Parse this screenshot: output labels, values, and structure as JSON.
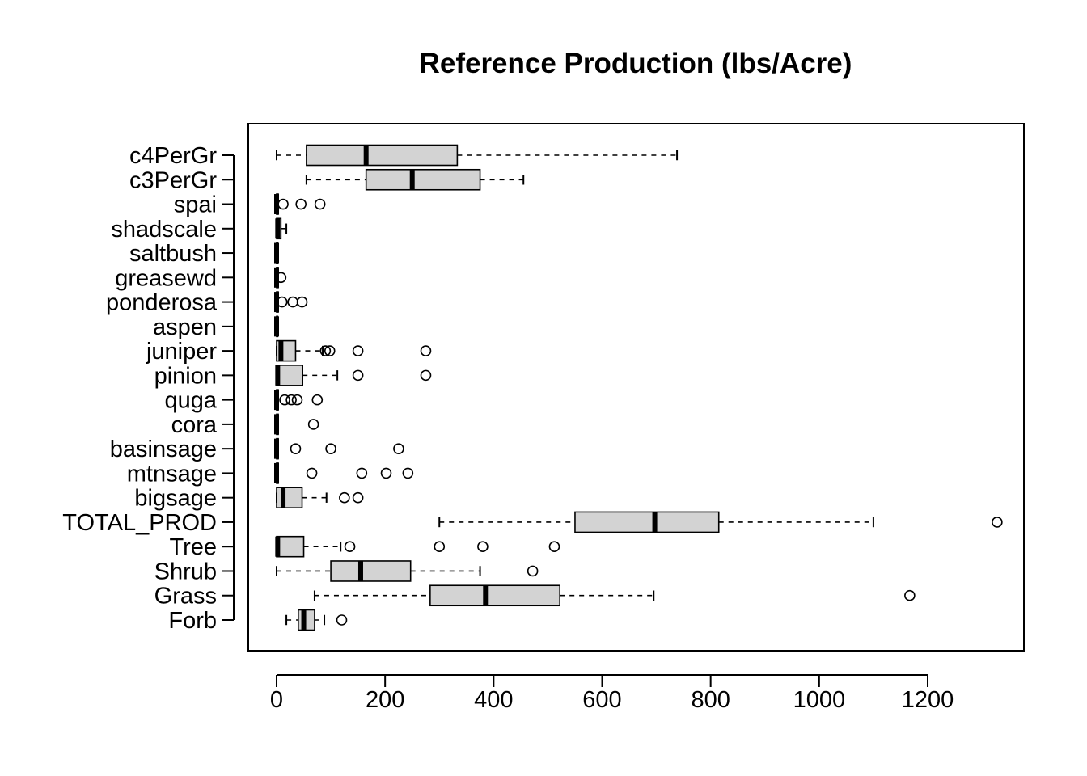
{
  "chart_data": {
    "type": "boxplot",
    "orientation": "horizontal",
    "title": "Reference Production (lbs/Acre)",
    "xlabel": "",
    "ylabel": "",
    "xlim": [
      0,
      1350
    ],
    "x_ticks": [
      0,
      200,
      400,
      600,
      800,
      1000,
      1200
    ],
    "grid": false,
    "legend": "none",
    "colors": {
      "box_fill": "#d3d3d3",
      "stroke": "#000000"
    },
    "categories": [
      "Forb",
      "Grass",
      "Shrub",
      "Tree",
      "TOTAL_PROD",
      "bigsage",
      "mtnsage",
      "basinsage",
      "cora",
      "quga",
      "pinion",
      "juniper",
      "aspen",
      "ponderosa",
      "greasewd",
      "saltbush",
      "shadscale",
      "spai",
      "c3PerGr",
      "c4PerGr"
    ],
    "boxes": [
      {
        "name": "Forb",
        "whisker_low": 18,
        "q1": 40,
        "median": 50,
        "q3": 70,
        "whisker_high": 88,
        "outliers": [
          120
        ]
      },
      {
        "name": "Grass",
        "whisker_low": 70,
        "q1": 283,
        "median": 385,
        "q3": 522,
        "whisker_high": 695,
        "outliers": [
          1167
        ]
      },
      {
        "name": "Shrub",
        "whisker_low": 0,
        "q1": 100,
        "median": 155,
        "q3": 247,
        "whisker_high": 375,
        "outliers": [
          472
        ]
      },
      {
        "name": "Tree",
        "whisker_low": 0,
        "q1": 0,
        "median": 2,
        "q3": 50,
        "whisker_high": 118,
        "outliers": [
          135,
          300,
          380,
          512
        ]
      },
      {
        "name": "TOTAL_PROD",
        "whisker_low": 300,
        "q1": 550,
        "median": 697,
        "q3": 815,
        "whisker_high": 1100,
        "outliers": [
          1328
        ]
      },
      {
        "name": "bigsage",
        "whisker_low": 0,
        "q1": 0,
        "median": 12,
        "q3": 47,
        "whisker_high": 92,
        "outliers": [
          125,
          150
        ]
      },
      {
        "name": "mtnsage",
        "whisker_low": 0,
        "q1": 0,
        "median": 0,
        "q3": 3,
        "whisker_high": 3,
        "outliers": [
          65,
          157,
          202,
          242
        ]
      },
      {
        "name": "basinsage",
        "whisker_low": 0,
        "q1": 0,
        "median": 0,
        "q3": 3,
        "whisker_high": 3,
        "outliers": [
          35,
          100,
          225
        ]
      },
      {
        "name": "cora",
        "whisker_low": 0,
        "q1": 0,
        "median": 0,
        "q3": 3,
        "whisker_high": 3,
        "outliers": [
          68
        ]
      },
      {
        "name": "quga",
        "whisker_low": 0,
        "q1": 0,
        "median": 0,
        "q3": 3,
        "whisker_high": 3,
        "outliers": [
          15,
          27,
          38,
          75
        ]
      },
      {
        "name": "pinion",
        "whisker_low": 0,
        "q1": 0,
        "median": 2,
        "q3": 48,
        "whisker_high": 112,
        "outliers": [
          150,
          275
        ]
      },
      {
        "name": "juniper",
        "whisker_low": 0,
        "q1": 0,
        "median": 8,
        "q3": 35,
        "whisker_high": 85,
        "outliers": [
          90,
          98,
          150,
          275
        ]
      },
      {
        "name": "aspen",
        "whisker_low": 0,
        "q1": 0,
        "median": 0,
        "q3": 2,
        "whisker_high": 2,
        "outliers": []
      },
      {
        "name": "ponderosa",
        "whisker_low": 0,
        "q1": 0,
        "median": 0,
        "q3": 3,
        "whisker_high": 3,
        "outliers": [
          10,
          30,
          47
        ]
      },
      {
        "name": "greasewd",
        "whisker_low": 0,
        "q1": 0,
        "median": 0,
        "q3": 3,
        "whisker_high": 3,
        "outliers": [
          8
        ]
      },
      {
        "name": "saltbush",
        "whisker_low": 0,
        "q1": 0,
        "median": 0,
        "q3": 2,
        "whisker_high": 2,
        "outliers": []
      },
      {
        "name": "shadscale",
        "whisker_low": 0,
        "q1": 0,
        "median": 2,
        "q3": 8,
        "whisker_high": 18,
        "outliers": []
      },
      {
        "name": "spai",
        "whisker_low": 0,
        "q1": 0,
        "median": 0,
        "q3": 3,
        "whisker_high": 3,
        "outliers": [
          12,
          45,
          80
        ]
      },
      {
        "name": "c3PerGr",
        "whisker_low": 55,
        "q1": 165,
        "median": 250,
        "q3": 375,
        "whisker_high": 455,
        "outliers": []
      },
      {
        "name": "c4PerGr",
        "whisker_low": 0,
        "q1": 55,
        "median": 165,
        "q3": 333,
        "whisker_high": 738,
        "outliers": []
      }
    ]
  }
}
